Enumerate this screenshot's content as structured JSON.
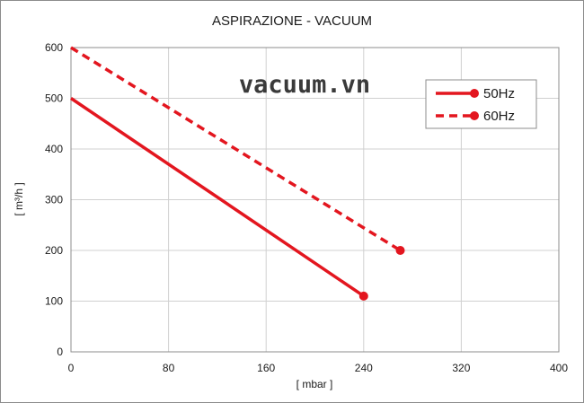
{
  "chart_data": {
    "type": "line",
    "title": "ASPIRAZIONE - VACUUM",
    "xlabel": "[ mbar ]",
    "ylabel": "[ m³/h ]",
    "xlim": [
      0,
      400
    ],
    "ylim": [
      0,
      600
    ],
    "xticks": [
      "0",
      "80",
      "160",
      "240",
      "320",
      "400"
    ],
    "yticks": [
      "0",
      "100",
      "200",
      "300",
      "400",
      "500",
      "600"
    ],
    "grid": true,
    "legend_position": "top-right",
    "series": [
      {
        "name": "50Hz",
        "style": "solid",
        "color": "#e3161f",
        "x": [
          0,
          240
        ],
        "y": [
          500,
          110
        ]
      },
      {
        "name": "60Hz",
        "style": "dashed",
        "color": "#e3161f",
        "x": [
          0,
          270
        ],
        "y": [
          600,
          200
        ]
      }
    ]
  },
  "watermark": "vacuum.vn"
}
